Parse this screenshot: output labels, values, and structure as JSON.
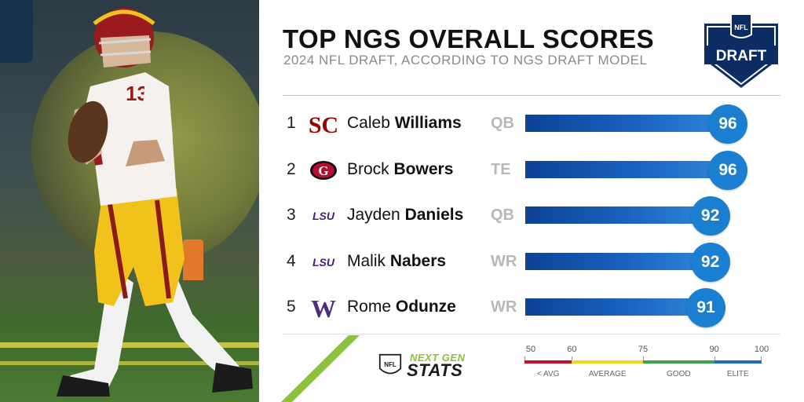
{
  "header": {
    "title": "TOP NGS OVERALL SCORES",
    "subtitle": "2024 NFL DRAFT, ACCORDING TO NGS DRAFT MODEL",
    "logo_text": "DRAFT"
  },
  "chart_data": {
    "type": "bar",
    "title": "TOP NGS OVERALL SCORES",
    "subtitle": "2024 NFL DRAFT, ACCORDING TO NGS DRAFT MODEL",
    "xlim": [
      50,
      100
    ],
    "rows": [
      {
        "rank": "1",
        "first": "Caleb",
        "last": "Williams",
        "position": "QB",
        "school": "USC",
        "score": 96
      },
      {
        "rank": "2",
        "first": "Brock",
        "last": "Bowers",
        "position": "TE",
        "school": "Georgia",
        "score": 96
      },
      {
        "rank": "3",
        "first": "Jayden",
        "last": "Daniels",
        "position": "QB",
        "school": "LSU",
        "score": 92
      },
      {
        "rank": "4",
        "first": "Malik",
        "last": "Nabers",
        "position": "WR",
        "school": "LSU",
        "score": 92
      },
      {
        "rank": "5",
        "first": "Rome",
        "last": "Odunze",
        "position": "WR",
        "school": "Washington",
        "score": 91
      }
    ],
    "scale": {
      "ticks": [
        "50",
        "60",
        "75",
        "90",
        "100"
      ],
      "bands": [
        {
          "label": "< AVG",
          "from": 50,
          "to": 60,
          "color": "#c8102e"
        },
        {
          "label": "AVERAGE",
          "from": 60,
          "to": 75,
          "color": "#f0d61e"
        },
        {
          "label": "GOOD",
          "from": 75,
          "to": 90,
          "color": "#39a84a"
        },
        {
          "label": "ELITE",
          "from": 90,
          "to": 100,
          "color": "#1a6fc4"
        }
      ]
    }
  },
  "team_logos": {
    "USC": {
      "text": "SC",
      "color": "#990000"
    },
    "Georgia": {
      "text": "G",
      "color": "#ba0c2f"
    },
    "LSU": {
      "text": "LSU",
      "color": "#461d7c"
    },
    "Washington": {
      "text": "W",
      "color": "#4b2e83"
    }
  },
  "player_jersey": "13",
  "footer": {
    "ngs_top": "NEXT GEN",
    "ngs_bottom": "STATS",
    "nfl_mark": "NFL"
  },
  "colors": {
    "bar_dark": "#0d4295",
    "bar_light": "#2e86d9",
    "score_badge": "#1a7fd0",
    "accent_green": "#8ac23b"
  }
}
